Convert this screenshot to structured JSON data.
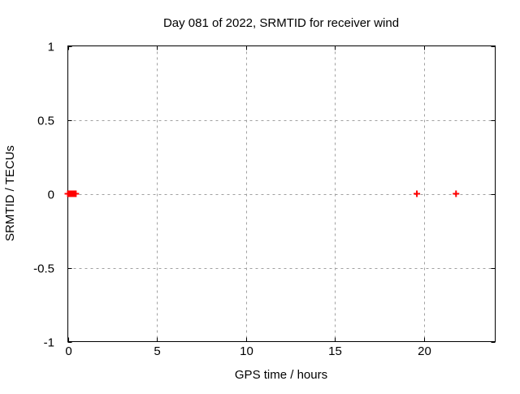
{
  "page": {
    "background": "#ffffff"
  },
  "chart_data": {
    "type": "scatter",
    "title": "Day 081 of 2022, SRMTID for receiver wind",
    "xlabel": "GPS time / hours",
    "ylabel": "SRMTID / TECUs",
    "xlim": [
      0,
      24
    ],
    "ylim": [
      -1,
      1
    ],
    "xticks": [
      0,
      5,
      10,
      15,
      20
    ],
    "yticks": [
      -1,
      -0.5,
      0,
      0.5,
      1
    ],
    "grid": true,
    "legend": "none",
    "colors": {
      "marker": "#ff0000",
      "grid": "#a0a0a0",
      "border": "#000000",
      "text": "#000000"
    },
    "marker_shape": "plus",
    "series": [
      {
        "name": "SRMTID",
        "points": [
          {
            "x": 0.0,
            "y": 0
          },
          {
            "x": 0.05,
            "y": 0
          },
          {
            "x": 0.1,
            "y": 0
          },
          {
            "x": 0.15,
            "y": 0
          },
          {
            "x": 0.2,
            "y": 0
          },
          {
            "x": 0.25,
            "y": 0
          },
          {
            "x": 0.3,
            "y": 0
          },
          {
            "x": 0.35,
            "y": 0
          },
          {
            "x": 0.4,
            "y": 0
          },
          {
            "x": 0.45,
            "y": 0
          },
          {
            "x": 19.6,
            "y": 0
          },
          {
            "x": 21.8,
            "y": 0
          }
        ]
      }
    ]
  }
}
